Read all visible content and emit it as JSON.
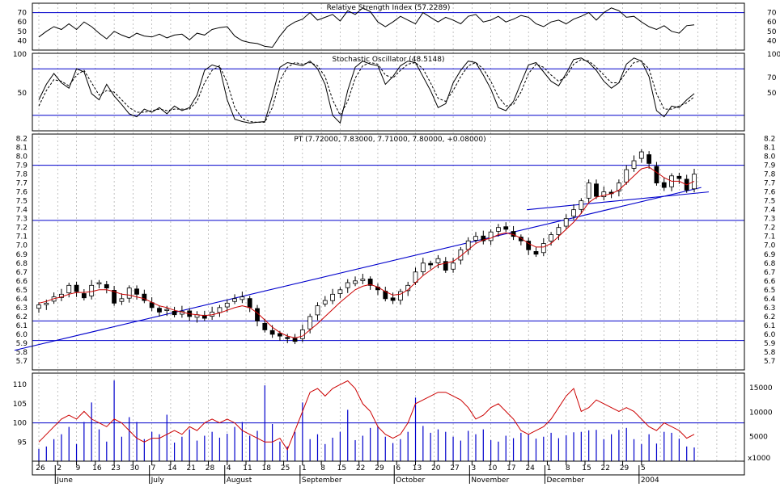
{
  "chart_data": [
    {
      "panel": "rsi",
      "type": "line",
      "title": "Relative Strength Index (57.2289)",
      "ylim": [
        30,
        80
      ],
      "yticks": [
        40,
        50,
        60,
        70
      ],
      "reference_lines": [
        70,
        30
      ],
      "colors": {
        "line": "#000000",
        "ref": "#0000cc"
      },
      "series": [
        {
          "values": [
            44,
            50,
            55,
            52,
            58,
            52,
            60,
            55,
            48,
            42,
            50,
            46,
            43,
            48,
            45,
            44,
            47,
            43,
            46,
            47,
            41,
            48,
            46,
            52,
            54,
            55,
            45,
            40,
            38,
            37,
            34,
            33,
            45,
            55,
            60,
            63,
            70,
            62,
            65,
            68,
            61,
            72,
            68,
            75,
            71,
            60,
            55,
            60,
            66,
            62,
            58,
            70,
            65,
            60,
            65,
            62,
            58,
            66,
            68,
            60,
            62,
            66,
            60,
            63,
            67,
            65,
            58,
            55,
            60,
            62,
            58,
            63,
            66,
            70,
            62,
            70,
            75,
            72,
            65,
            66,
            60,
            55,
            52,
            56,
            50,
            48,
            56,
            57
          ]
        }
      ]
    },
    {
      "panel": "stochastic",
      "type": "line",
      "title": "Stochastic Oscillator (48.5148)",
      "ylim": [
        0,
        100
      ],
      "yticks": [
        50,
        100
      ],
      "yticks_right": [
        50,
        70,
        100
      ],
      "reference_lines": [
        80,
        20
      ],
      "colors": {
        "line": "#000000",
        "ref": "#0000cc"
      },
      "series": [
        {
          "name": "%K",
          "values": [
            40,
            60,
            74,
            62,
            55,
            80,
            76,
            48,
            40,
            60,
            45,
            34,
            22,
            18,
            28,
            24,
            30,
            22,
            32,
            26,
            30,
            46,
            78,
            85,
            82,
            40,
            15,
            12,
            10,
            11,
            12,
            45,
            82,
            88,
            86,
            84,
            90,
            80,
            60,
            20,
            10,
            52,
            82,
            90,
            86,
            84,
            60,
            70,
            84,
            90,
            88,
            70,
            52,
            30,
            35,
            62,
            78,
            90,
            88,
            72,
            54,
            30,
            26,
            38,
            62,
            85,
            88,
            76,
            64,
            58,
            74,
            92,
            94,
            88,
            78,
            64,
            55,
            62,
            86,
            94,
            90,
            70,
            26,
            18,
            32,
            30,
            40,
            48
          ]
        },
        {
          "name": "%D",
          "values": [
            32,
            52,
            66,
            64,
            58,
            72,
            78,
            62,
            46,
            52,
            50,
            40,
            30,
            24,
            24,
            26,
            28,
            26,
            28,
            28,
            28,
            38,
            62,
            78,
            84,
            62,
            30,
            16,
            12,
            11,
            11,
            30,
            65,
            82,
            88,
            86,
            88,
            84,
            70,
            40,
            20,
            38,
            68,
            84,
            88,
            86,
            72,
            68,
            78,
            86,
            88,
            80,
            62,
            42,
            38,
            52,
            70,
            84,
            88,
            80,
            64,
            44,
            32,
            34,
            50,
            74,
            86,
            82,
            72,
            64,
            70,
            86,
            92,
            90,
            82,
            72,
            62,
            62,
            76,
            88,
            90,
            80,
            48,
            28,
            28,
            32,
            36,
            44
          ]
        }
      ]
    },
    {
      "panel": "price",
      "type": "candlestick",
      "title": "PT (7.72000, 7.83000, 7.71000, 7.80000, +0.08000)",
      "ylim": [
        5.6,
        8.25
      ],
      "yticks": [
        5.7,
        5.8,
        5.9,
        6.0,
        6.1,
        6.2,
        6.3,
        6.4,
        6.5,
        6.6,
        6.7,
        6.8,
        6.9,
        7.0,
        7.1,
        7.2,
        7.3,
        7.4,
        7.5,
        7.6,
        7.7,
        7.8,
        7.9,
        8.0,
        8.1,
        8.2
      ],
      "reference_lines": [
        7.9,
        7.28,
        6.15,
        5.93
      ],
      "trendlines": [
        {
          "from": [
            0,
            5.82
          ],
          "to": [
            86,
            7.65
          ]
        },
        {
          "from": [
            68,
            7.4
          ],
          "to": [
            87,
            7.6
          ]
        }
      ],
      "colors": {
        "up": "#ffffff",
        "down": "#000000",
        "ma": "#cc0000",
        "ref": "#0000cc"
      },
      "close": [
        6.33,
        6.35,
        6.42,
        6.45,
        6.55,
        6.48,
        6.41,
        6.55,
        6.58,
        6.52,
        6.35,
        6.4,
        6.52,
        6.45,
        6.38,
        6.3,
        6.25,
        6.28,
        6.22,
        6.26,
        6.2,
        6.22,
        6.18,
        6.25,
        6.3,
        6.35,
        6.4,
        6.42,
        6.3,
        6.15,
        6.05,
        6.0,
        5.98,
        5.96,
        5.92,
        6.05,
        6.2,
        6.32,
        6.38,
        6.45,
        6.5,
        6.58,
        6.6,
        6.62,
        6.55,
        6.5,
        6.4,
        6.38,
        6.48,
        6.55,
        6.7,
        6.8,
        6.78,
        6.85,
        6.72,
        6.8,
        6.95,
        7.05,
        7.1,
        7.05,
        7.15,
        7.2,
        7.18,
        7.1,
        7.05,
        6.95,
        6.9,
        7.02,
        7.12,
        7.2,
        7.3,
        7.4,
        7.5,
        7.7,
        7.55,
        7.6,
        7.58,
        7.7,
        7.85,
        7.95,
        8.05,
        7.92,
        7.7,
        7.65,
        7.78,
        7.75,
        7.62,
        7.8
      ],
      "ma": [
        6.35,
        6.37,
        6.4,
        6.42,
        6.45,
        6.47,
        6.47,
        6.48,
        6.5,
        6.5,
        6.48,
        6.45,
        6.44,
        6.42,
        6.4,
        6.36,
        6.32,
        6.3,
        6.27,
        6.25,
        6.23,
        6.22,
        6.21,
        6.22,
        6.24,
        6.27,
        6.3,
        6.32,
        6.3,
        6.24,
        6.16,
        6.08,
        6.02,
        5.98,
        5.96,
        5.98,
        6.05,
        6.12,
        6.2,
        6.28,
        6.36,
        6.43,
        6.5,
        6.54,
        6.56,
        6.53,
        6.48,
        6.44,
        6.45,
        6.5,
        6.58,
        6.66,
        6.72,
        6.78,
        6.8,
        6.82,
        6.88,
        6.95,
        7.02,
        7.06,
        7.08,
        7.12,
        7.14,
        7.12,
        7.08,
        7.02,
        6.98,
        6.98,
        7.02,
        7.1,
        7.18,
        7.26,
        7.36,
        7.48,
        7.54,
        7.56,
        7.58,
        7.62,
        7.7,
        7.78,
        7.86,
        7.88,
        7.82,
        7.76,
        7.72,
        7.72,
        7.68,
        7.72
      ]
    },
    {
      "panel": "volume",
      "type": "bar",
      "title": "",
      "ylim_left": [
        90,
        113
      ],
      "yticks_left": [
        95,
        100,
        105,
        110
      ],
      "ylim_right": [
        0,
        18000
      ],
      "yticks_right": [
        5000,
        10000,
        15000
      ],
      "right_unit": "x1000",
      "reference_lines_left": [
        100
      ],
      "colors": {
        "bar": "#0000cc",
        "line": "#cc0000",
        "ref": "#0000cc"
      },
      "values": [
        2500,
        3000,
        4500,
        5500,
        7000,
        3500,
        8000,
        12000,
        6500,
        4000,
        16500,
        5000,
        9000,
        8000,
        4500,
        6000,
        5500,
        9500,
        3800,
        5000,
        6500,
        4200,
        5200,
        6000,
        4800,
        5600,
        7000,
        8000,
        5200,
        6200,
        15500,
        7600,
        4000,
        3000,
        6000,
        12000,
        4500,
        5500,
        3500,
        4800,
        6000,
        10500,
        4300,
        5200,
        6800,
        7200,
        5000,
        3700,
        4500,
        6000,
        13000,
        7200,
        5800,
        6500,
        6000,
        5000,
        4200,
        6200,
        5500,
        6500,
        4300,
        4000,
        5200,
        4700,
        5800,
        5500,
        4600,
        5000,
        5800,
        4700,
        5300,
        5900,
        6000,
        6300,
        6400,
        4500,
        5500,
        6400,
        6800,
        4500,
        3500,
        5500,
        3600,
        6000,
        5800,
        4600,
        3000,
        2800
      ],
      "line": [
        95,
        97,
        99,
        101,
        102,
        101,
        103,
        101,
        100,
        99,
        101,
        100,
        98,
        96,
        95,
        96,
        96,
        97,
        98,
        97,
        99,
        98,
        100,
        101,
        100,
        101,
        100,
        98,
        97,
        96,
        95,
        95,
        96,
        93,
        98,
        103,
        108,
        109,
        107,
        109,
        110,
        111,
        109,
        105,
        103,
        99,
        97,
        96,
        97,
        100,
        105,
        106,
        107,
        108,
        108,
        107,
        106,
        104,
        101,
        102,
        104,
        105,
        103,
        101,
        98,
        97,
        98,
        99,
        101,
        104,
        107,
        109,
        103,
        104,
        106,
        105,
        104,
        103,
        104,
        103,
        101,
        99,
        98,
        100,
        99,
        98,
        96,
        97
      ]
    }
  ],
  "x_axis": {
    "day_labels": [
      "26",
      "2",
      "9",
      "16",
      "23",
      "30",
      "7",
      "14",
      "21",
      "28",
      "4",
      "11",
      "18",
      "25",
      "1",
      "8",
      "15",
      "22",
      "29",
      "6",
      "13",
      "20",
      "27",
      "3",
      "10",
      "17",
      "24",
      "1",
      "8",
      "15",
      "22",
      "29",
      "5"
    ],
    "month_labels": [
      "June",
      "July",
      "August",
      "September",
      "October",
      "November",
      "December",
      "2004"
    ]
  }
}
